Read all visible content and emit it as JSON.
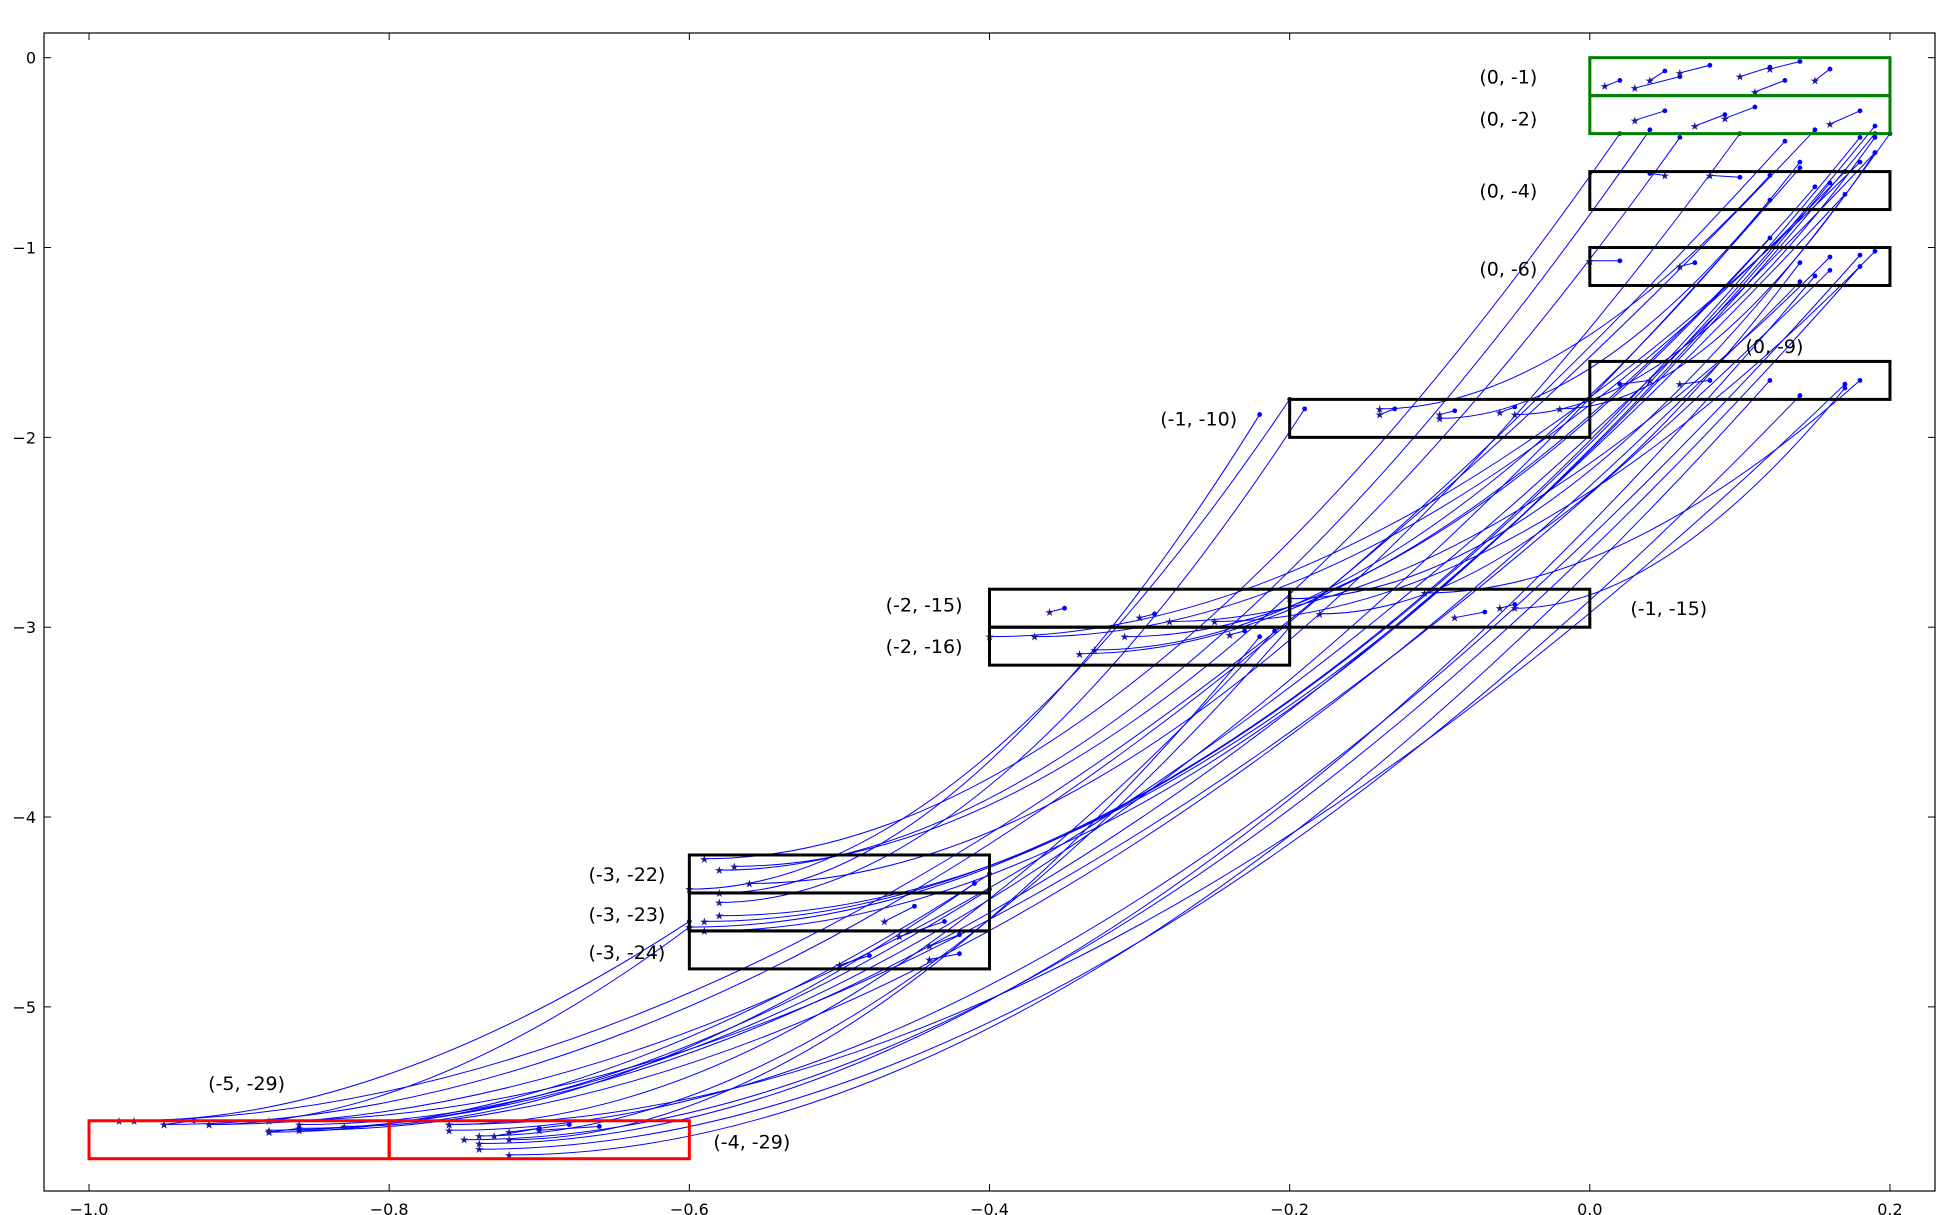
{
  "chart_data": {
    "type": "line",
    "title": "",
    "xlabel": "",
    "ylabel": "",
    "xlim": [
      -1.03,
      0.23
    ],
    "ylim": [
      -5.97,
      0.13
    ],
    "grid": false,
    "legend": "none",
    "xticks": [
      -1.0,
      -0.8,
      -0.6,
      -0.4,
      -0.2,
      0.0,
      0.2
    ],
    "xtick_labels": [
      "−1.0",
      "−0.8",
      "−0.6",
      "−0.4",
      "−0.2",
      "0.0",
      "0.2"
    ],
    "yticks": [
      0,
      -1,
      -2,
      -3,
      -4,
      -5
    ],
    "ytick_labels": [
      "0",
      "−1",
      "−2",
      "−3",
      "−4",
      "−5"
    ],
    "colors": {
      "trajectory": "#0000ff",
      "start_marker": "#1a1a99",
      "black_box": "#000000",
      "green_box": "#008000",
      "red_box": "#ff0000"
    },
    "boxes": [
      {
        "label": "(0, -1)",
        "color": "green",
        "x0": 0.0,
        "x1": 0.2,
        "y0": -0.2,
        "y1": 0.0,
        "label_x": -0.035,
        "label_y": -0.1,
        "anchor": "end"
      },
      {
        "label": "(0, -2)",
        "color": "green",
        "x0": 0.0,
        "x1": 0.2,
        "y0": -0.4,
        "y1": -0.2,
        "label_x": -0.035,
        "label_y": -0.32,
        "anchor": "end"
      },
      {
        "label": "(0, -4)",
        "color": "black",
        "x0": 0.0,
        "x1": 0.2,
        "y0": -0.8,
        "y1": -0.6,
        "label_x": -0.035,
        "label_y": -0.7,
        "anchor": "end"
      },
      {
        "label": "(0, -6)",
        "color": "black",
        "x0": 0.0,
        "x1": 0.2,
        "y0": -1.2,
        "y1": -1.0,
        "label_x": -0.035,
        "label_y": -1.11,
        "anchor": "end"
      },
      {
        "label": "(0, -9)",
        "color": "black",
        "x0": 0.0,
        "x1": 0.2,
        "y0": -1.8,
        "y1": -1.6,
        "label_x": 0.123,
        "label_y": -1.52,
        "anchor": "middle"
      },
      {
        "label": "(-1, -10)",
        "color": "black",
        "x0": -0.2,
        "x1": 0.0,
        "y0": -2.0,
        "y1": -1.8,
        "label_x": -0.235,
        "label_y": -1.9,
        "anchor": "end"
      },
      {
        "label": "(-2, -15)",
        "color": "black",
        "x0": -0.4,
        "x1": -0.2,
        "y0": -3.0,
        "y1": -2.8,
        "label_x": -0.418,
        "label_y": -2.88,
        "anchor": "end"
      },
      {
        "label": "(-1, -15)",
        "color": "black",
        "x0": -0.2,
        "x1": 0.0,
        "y0": -3.0,
        "y1": -2.8,
        "label_x": 0.027,
        "label_y": -2.9,
        "anchor": "start"
      },
      {
        "label": "(-2, -16)",
        "color": "black",
        "x0": -0.4,
        "x1": -0.2,
        "y0": -3.2,
        "y1": -3.0,
        "label_x": -0.418,
        "label_y": -3.1,
        "anchor": "end"
      },
      {
        "label": "(-3, -22)",
        "color": "black",
        "x0": -0.6,
        "x1": -0.4,
        "y0": -4.4,
        "y1": -4.2,
        "label_x": -0.616,
        "label_y": -4.3,
        "anchor": "end"
      },
      {
        "label": "(-3, -23)",
        "color": "black",
        "x0": -0.6,
        "x1": -0.4,
        "y0": -4.6,
        "y1": -4.4,
        "label_x": -0.616,
        "label_y": -4.51,
        "anchor": "end"
      },
      {
        "label": "(-3, -24)",
        "color": "black",
        "x0": -0.6,
        "x1": -0.4,
        "y0": -4.8,
        "y1": -4.6,
        "label_x": -0.616,
        "label_y": -4.71,
        "anchor": "end"
      },
      {
        "label": "(-5, -29)",
        "color": "red",
        "x0": -1.0,
        "x1": -0.8,
        "y0": -5.8,
        "y1": -5.6,
        "label_x": -0.895,
        "label_y": -5.4,
        "anchor": "middle"
      },
      {
        "label": "(-4, -29)",
        "color": "red",
        "x0": -0.8,
        "x1": -0.6,
        "y0": -5.8,
        "y1": -5.6,
        "label_x": -0.584,
        "label_y": -5.71,
        "anchor": "start"
      }
    ],
    "trajectories": [
      {
        "from": [
          0.15,
          -0.38
        ],
        "to": [
          -0.98,
          -5.6
        ]
      },
      {
        "from": [
          0.13,
          -0.44
        ],
        "to": [
          -0.95,
          -5.62
        ]
      },
      {
        "from": [
          0.19,
          -0.5
        ],
        "to": [
          -0.92,
          -5.62
        ]
      },
      {
        "from": [
          0.17,
          -0.72
        ],
        "to": [
          -0.88,
          -5.65
        ]
      },
      {
        "from": [
          0.14,
          -0.58
        ],
        "to": [
          -0.86,
          -5.62
        ]
      },
      {
        "from": [
          0.16,
          -1.12
        ],
        "to": [
          -0.88,
          -5.6
        ]
      },
      {
        "from": [
          0.14,
          -1.18
        ],
        "to": [
          -0.86,
          -5.65
        ]
      },
      {
        "from": [
          0.02,
          -0.4
        ],
        "to": [
          -0.59,
          -4.22
        ]
      },
      {
        "from": [
          0.06,
          -0.42
        ],
        "to": [
          -0.57,
          -4.26
        ]
      },
      {
        "from": [
          0.04,
          -0.38
        ],
        "to": [
          -0.58,
          -4.28
        ]
      },
      {
        "from": [
          0.1,
          -0.4
        ],
        "to": [
          -0.56,
          -4.35
        ]
      },
      {
        "from": [
          0.19,
          -0.36
        ],
        "to": [
          -0.6,
          -4.58
        ]
      },
      {
        "from": [
          0.18,
          -0.42
        ],
        "to": [
          -0.59,
          -4.55
        ]
      },
      {
        "from": [
          0.19,
          -0.4
        ],
        "to": [
          -0.58,
          -4.52
        ]
      },
      {
        "from": [
          0.16,
          -0.66
        ],
        "to": [
          -0.59,
          -4.6
        ]
      },
      {
        "from": [
          0.18,
          -1.04
        ],
        "to": [
          -0.76,
          -5.65
        ]
      },
      {
        "from": [
          0.15,
          -1.15
        ],
        "to": [
          -0.74,
          -5.72
        ]
      },
      {
        "from": [
          0.18,
          -1.1
        ],
        "to": [
          -0.75,
          -5.7
        ]
      },
      {
        "from": [
          0.17,
          -1.72
        ],
        "to": [
          -0.76,
          -5.62
        ]
      },
      {
        "from": [
          0.14,
          -1.78
        ],
        "to": [
          -0.74,
          -5.75
        ]
      },
      {
        "from": [
          0.12,
          -1.7
        ],
        "to": [
          -0.72,
          -5.78
        ]
      },
      {
        "from": [
          0.18,
          -0.55
        ],
        "to": [
          -0.4,
          -3.05
        ]
      },
      {
        "from": [
          0.17,
          -0.6
        ],
        "to": [
          -0.37,
          -3.05
        ]
      },
      {
        "from": [
          0.15,
          -0.68
        ],
        "to": [
          -0.34,
          -3.14
        ]
      },
      {
        "from": [
          0.12,
          -0.95
        ],
        "to": [
          -0.31,
          -3.05
        ]
      },
      {
        "from": [
          0.12,
          -0.75
        ],
        "to": [
          -0.33,
          -3.12
        ]
      },
      {
        "from": [
          0.16,
          -1.05
        ],
        "to": [
          -0.28,
          -2.97
        ]
      },
      {
        "from": [
          0.19,
          -1.02
        ],
        "to": [
          -0.25,
          -2.97
        ]
      },
      {
        "from": [
          0.2,
          -0.4
        ],
        "to": [
          -0.2,
          -2.85
        ]
      },
      {
        "from": [
          0.14,
          -1.08
        ],
        "to": [
          -0.18,
          -2.93
        ]
      },
      {
        "from": [
          0.18,
          -1.7
        ],
        "to": [
          -0.11,
          -2.82
        ]
      },
      {
        "from": [
          0.17,
          -1.74
        ],
        "to": [
          -0.05,
          -2.9
        ]
      },
      {
        "from": [
          0.12,
          -0.62
        ],
        "to": [
          -0.14,
          -1.85
        ]
      },
      {
        "from": [
          0.14,
          -0.55
        ],
        "to": [
          -0.1,
          -1.9
        ]
      },
      {
        "from": [
          0.19,
          -0.42
        ],
        "to": [
          -0.05,
          -1.88
        ]
      },
      {
        "from": [
          0.19,
          -0.5
        ],
        "to": [
          -0.02,
          -1.85
        ]
      },
      {
        "from": [
          -0.2,
          -1.8
        ],
        "to": [
          -0.6,
          -4.38
        ]
      },
      {
        "from": [
          -0.19,
          -1.85
        ],
        "to": [
          -0.58,
          -4.45
        ]
      },
      {
        "from": [
          -0.22,
          -1.88
        ],
        "to": [
          -0.58,
          -4.4
        ]
      },
      {
        "from": [
          -0.21,
          -3.02
        ],
        "to": [
          -0.76,
          -5.62
        ]
      },
      {
        "from": [
          -0.2,
          -3.0
        ],
        "to": [
          -0.74,
          -5.68
        ]
      },
      {
        "from": [
          -0.22,
          -3.05
        ],
        "to": [
          -0.72,
          -5.7
        ]
      },
      {
        "from": [
          -0.4,
          -4.3
        ],
        "to": [
          -0.88,
          -5.66
        ]
      },
      {
        "from": [
          -0.4,
          -4.38
        ],
        "to": [
          -0.86,
          -5.64
        ]
      },
      {
        "from": [
          -0.41,
          -4.35
        ],
        "to": [
          -0.83,
          -5.63
        ]
      },
      {
        "from": [
          -0.6,
          -4.58
        ],
        "to": [
          -0.92,
          -5.62
        ]
      },
      {
        "from": [
          -0.6,
          -4.55
        ],
        "to": [
          -0.97,
          -5.6
        ]
      }
    ],
    "short_segments": [
      {
        "from": [
          0.02,
          -0.12
        ],
        "to": [
          0.01,
          -0.15
        ]
      },
      {
        "from": [
          0.05,
          -0.07
        ],
        "to": [
          0.04,
          -0.12
        ]
      },
      {
        "from": [
          0.06,
          -0.1
        ],
        "to": [
          0.03,
          -0.16
        ]
      },
      {
        "from": [
          0.08,
          -0.04
        ],
        "to": [
          0.06,
          -0.08
        ]
      },
      {
        "from": [
          0.12,
          -0.05
        ],
        "to": [
          0.1,
          -0.1
        ]
      },
      {
        "from": [
          0.14,
          -0.02
        ],
        "to": [
          0.12,
          -0.06
        ]
      },
      {
        "from": [
          0.16,
          -0.06
        ],
        "to": [
          0.15,
          -0.12
        ]
      },
      {
        "from": [
          0.13,
          -0.12
        ],
        "to": [
          0.11,
          -0.18
        ]
      },
      {
        "from": [
          0.05,
          -0.28
        ],
        "to": [
          0.03,
          -0.33
        ]
      },
      {
        "from": [
          0.09,
          -0.3
        ],
        "to": [
          0.07,
          -0.36
        ]
      },
      {
        "from": [
          0.11,
          -0.26
        ],
        "to": [
          0.09,
          -0.32
        ]
      },
      {
        "from": [
          0.18,
          -0.28
        ],
        "to": [
          0.16,
          -0.35
        ]
      },
      {
        "from": [
          0.04,
          -0.61
        ],
        "to": [
          0.05,
          -0.62
        ]
      },
      {
        "from": [
          0.1,
          -0.63
        ],
        "to": [
          0.08,
          -0.62
        ]
      },
      {
        "from": [
          0.02,
          -1.07
        ],
        "to": [
          0.0,
          -1.07
        ]
      },
      {
        "from": [
          0.07,
          -1.08
        ],
        "to": [
          0.06,
          -1.1
        ]
      },
      {
        "from": [
          0.02,
          -1.72
        ],
        "to": [
          0.04,
          -1.7
        ]
      },
      {
        "from": [
          0.08,
          -1.7
        ],
        "to": [
          0.06,
          -1.72
        ]
      },
      {
        "from": [
          -0.13,
          -1.85
        ],
        "to": [
          -0.14,
          -1.88
        ]
      },
      {
        "from": [
          -0.09,
          -1.86
        ],
        "to": [
          -0.1,
          -1.88
        ]
      },
      {
        "from": [
          -0.05,
          -1.84
        ],
        "to": [
          -0.06,
          -1.87
        ]
      },
      {
        "from": [
          -0.35,
          -2.9
        ],
        "to": [
          -0.36,
          -2.92
        ]
      },
      {
        "from": [
          -0.29,
          -2.93
        ],
        "to": [
          -0.3,
          -2.95
        ]
      },
      {
        "from": [
          -0.23,
          -3.02
        ],
        "to": [
          -0.24,
          -3.04
        ]
      },
      {
        "from": [
          -0.07,
          -2.92
        ],
        "to": [
          -0.09,
          -2.95
        ]
      },
      {
        "from": [
          -0.05,
          -2.88
        ],
        "to": [
          -0.06,
          -2.9
        ]
      },
      {
        "from": [
          -0.45,
          -4.47
        ],
        "to": [
          -0.47,
          -4.55
        ]
      },
      {
        "from": [
          -0.43,
          -4.55
        ],
        "to": [
          -0.46,
          -4.63
        ]
      },
      {
        "from": [
          -0.42,
          -4.62
        ],
        "to": [
          -0.44,
          -4.68
        ]
      },
      {
        "from": [
          -0.48,
          -4.73
        ],
        "to": [
          -0.5,
          -4.78
        ]
      },
      {
        "from": [
          -0.42,
          -4.72
        ],
        "to": [
          -0.44,
          -4.75
        ]
      },
      {
        "from": [
          -0.66,
          -5.63
        ],
        "to": [
          -0.7,
          -5.65
        ]
      },
      {
        "from": [
          -0.68,
          -5.62
        ],
        "to": [
          -0.72,
          -5.66
        ]
      },
      {
        "from": [
          -0.7,
          -5.64
        ],
        "to": [
          -0.73,
          -5.68
        ]
      },
      {
        "from": [
          -0.93,
          -5.6
        ],
        "to": [
          -0.95,
          -5.62
        ]
      },
      {
        "from": [
          -0.86,
          -5.64
        ],
        "to": [
          -0.88,
          -5.66
        ]
      }
    ]
  }
}
